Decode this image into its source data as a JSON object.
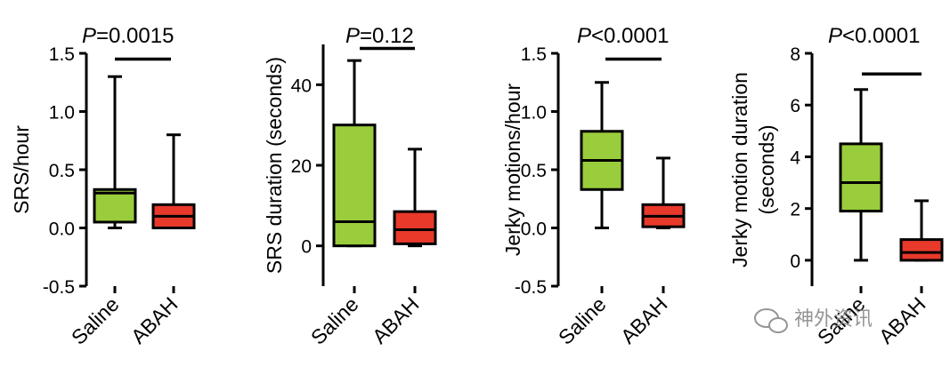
{
  "figure": {
    "colors": {
      "saline": "#9ACD3C",
      "abah": "#E8392B",
      "stroke": "#000000"
    },
    "watermark": {
      "text": "神外资讯",
      "icon": "wechat-icon"
    }
  },
  "chart_data": [
    {
      "type": "box",
      "title": "P=0.0015",
      "p_prefix": "P",
      "p_rest": "=0.0015",
      "ylabel": [
        "SRS/hour"
      ],
      "ylim": [
        -0.5,
        1.5
      ],
      "yticks": [
        -0.5,
        0.0,
        0.5,
        1.0,
        1.5
      ],
      "ytick_labels": [
        "-0.5",
        "0.0",
        "0.5",
        "1.0",
        "1.5"
      ],
      "categories": [
        "Saline",
        "ABAH"
      ],
      "boxes": [
        {
          "name": "Saline",
          "min": 0.0,
          "q1": 0.05,
          "median": 0.3,
          "q3": 0.33,
          "max": 1.3
        },
        {
          "name": "ABAH",
          "min": 0.0,
          "q1": 0.0,
          "median": 0.1,
          "q3": 0.2,
          "max": 0.8
        }
      ],
      "significance_bar_y": 1.45
    },
    {
      "type": "box",
      "title": "P=0.12",
      "p_prefix": "P",
      "p_rest": "=0.12",
      "ylabel": [
        "SRS duration (seconds)"
      ],
      "ylim": [
        -10,
        50
      ],
      "yticks": [
        0,
        20,
        40
      ],
      "ytick_labels": [
        "0",
        "20",
        "40"
      ],
      "categories": [
        "Saline",
        "ABAH"
      ],
      "boxes": [
        {
          "name": "Saline",
          "min": 0,
          "q1": 0,
          "median": 6,
          "q3": 30,
          "max": 46
        },
        {
          "name": "ABAH",
          "min": 0,
          "q1": 0.5,
          "median": 4,
          "q3": 8.5,
          "max": 24
        }
      ],
      "significance_bar_y": 49
    },
    {
      "type": "box",
      "title": "P<0.0001",
      "p_prefix": "P",
      "p_rest": "<0.0001",
      "ylabel": [
        "Jerky motions/hour"
      ],
      "ylim": [
        -0.5,
        1.5
      ],
      "yticks": [
        -0.5,
        0.0,
        0.5,
        1.0,
        1.5
      ],
      "ytick_labels": [
        "-0.5",
        "0.0",
        "0.5",
        "1.0",
        "1.5"
      ],
      "categories": [
        "Saline",
        "ABAH"
      ],
      "boxes": [
        {
          "name": "Saline",
          "min": 0.0,
          "q1": 0.33,
          "median": 0.58,
          "q3": 0.83,
          "max": 1.25
        },
        {
          "name": "ABAH",
          "min": 0.0,
          "q1": 0.01,
          "median": 0.1,
          "q3": 0.2,
          "max": 0.6
        }
      ],
      "significance_bar_y": 1.45
    },
    {
      "type": "box",
      "title": "P<0.0001",
      "p_prefix": "P",
      "p_rest": "<0.0001",
      "ylabel": [
        "Jerky motion duration",
        "(seconds)"
      ],
      "ylim": [
        -1,
        8
      ],
      "yticks": [
        0,
        2,
        4,
        6,
        8
      ],
      "ytick_labels": [
        "0",
        "2",
        "4",
        "6",
        "8"
      ],
      "categories": [
        "Saline",
        "ABAH"
      ],
      "boxes": [
        {
          "name": "Saline",
          "min": 0,
          "q1": 1.9,
          "median": 3.0,
          "q3": 4.5,
          "max": 6.6
        },
        {
          "name": "ABAH",
          "min": 0,
          "q1": 0.0,
          "median": 0.3,
          "q3": 0.8,
          "max": 2.3
        }
      ],
      "significance_bar_y": 7.2
    }
  ]
}
